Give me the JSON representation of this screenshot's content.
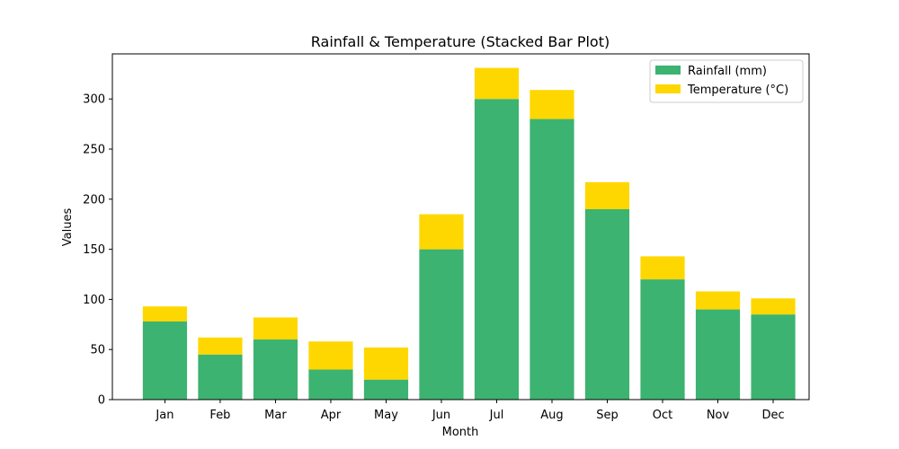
{
  "chart_data": {
    "type": "bar",
    "stacked": true,
    "title": "Rainfall & Temperature (Stacked Bar Plot)",
    "xlabel": "Month",
    "ylabel": "Values",
    "categories": [
      "Jan",
      "Feb",
      "Mar",
      "Apr",
      "May",
      "Jun",
      "Jul",
      "Aug",
      "Sep",
      "Oct",
      "Nov",
      "Dec"
    ],
    "series": [
      {
        "name": "Rainfall (mm)",
        "color": "#3cb371",
        "values": [
          78,
          45,
          60,
          30,
          20,
          150,
          300,
          280,
          190,
          120,
          90,
          85
        ]
      },
      {
        "name": "Temperature (°C)",
        "color": "#ffd700",
        "values": [
          15,
          17,
          22,
          28,
          32,
          35,
          31,
          29,
          27,
          23,
          18,
          16
        ]
      }
    ],
    "ylim": [
      0,
      345
    ],
    "yticks": [
      0,
      50,
      100,
      150,
      200,
      250,
      300
    ],
    "grid": false,
    "legend_position": "top-right"
  }
}
